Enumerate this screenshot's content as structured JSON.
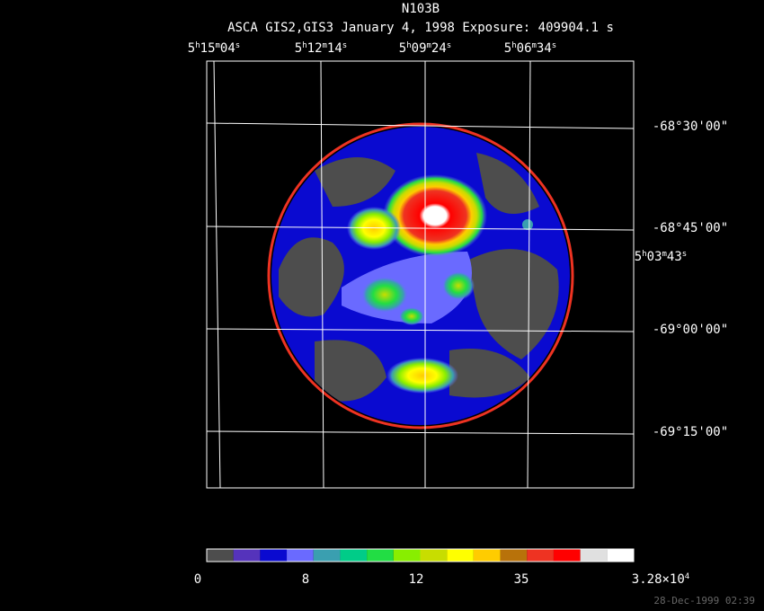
{
  "title": "N103B",
  "subtitle": "ASCA GIS2,GIS3 January 4, 1998 Exposure: 409904.1 s",
  "ra_labels": [
    [
      "5",
      "h",
      "15",
      "m",
      "04",
      "s"
    ],
    [
      "5",
      "h",
      "12",
      "m",
      "14",
      "s"
    ],
    [
      "5",
      "h",
      "09",
      "m",
      "24",
      "s"
    ],
    [
      "5",
      "h",
      "06",
      "m",
      "34",
      "s"
    ]
  ],
  "ra_side_label": [
    "5",
    "h",
    "03",
    "m",
    "43",
    "s"
  ],
  "dec_labels": [
    "-68°30'00\"",
    "-68°45'00\"",
    "-69°00'00\"",
    "-69°15'00\""
  ],
  "colorbar": {
    "colors": [
      "#4d4d4d",
      "#5533bb",
      "#0a0ad0",
      "#6a6aff",
      "#3a9fb0",
      "#00cc88",
      "#22dd44",
      "#88ee00",
      "#c8dd00",
      "#ffff00",
      "#ffcc00",
      "#b8720a",
      "#ee3322",
      "#ff0000",
      "#e0e0e0",
      "#ffffff"
    ],
    "labels": [
      [
        "0"
      ],
      [
        "8"
      ],
      [
        "12"
      ],
      [
        "35"
      ],
      [
        "3.28×10",
        "4"
      ]
    ]
  },
  "timestamp": "28-Dec-1999 02:39"
}
